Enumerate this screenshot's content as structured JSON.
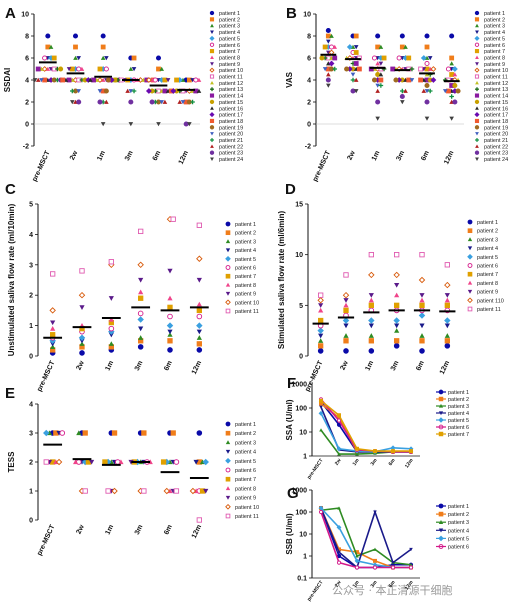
{
  "colors": [
    "#0a0aa8",
    "#f07d1a",
    "#2e8b22",
    "#1a1a8a",
    "#3aa0e0",
    "#d4198a",
    "#e0a000",
    "#f0448a",
    "#5a1a8a",
    "#d85a0a",
    "#e05ab0",
    "#c0c020",
    "#1a6a1a",
    "#8a1aa0",
    "#c8a000",
    "#2a2a2a",
    "#6a0ab0",
    "#f05a30",
    "#a06a20",
    "#4060c0",
    "#109040",
    "#b02020",
    "#7030a0",
    "#404040"
  ],
  "legend_labels": {
    "p1": "patient 1",
    "p2": "patient 2",
    "p3": "patient 3",
    "p4": "patient 4",
    "p5": "patient 5",
    "p6": "patient 6",
    "p7": "patient 7",
    "p8": "patient 8",
    "p9": "patient 9",
    "p10": "patient 10",
    "p11": "patient 11",
    "p12": "patient 12",
    "p13": "patient 13",
    "p14": "patient 14",
    "p15": "patient 15",
    "p16": "patient 16",
    "p17": "patient 17",
    "p18": "patient 18",
    "p19": "patient 19",
    "p20": "patient 20",
    "p21": "patient 21",
    "p22": "patient 22",
    "p23": "patient 23",
    "p24": "patient 24",
    "p10b": "patient 110"
  },
  "watermark": "公众号 · 本正清源干细胞",
  "chart_data": [
    {
      "panel": "A",
      "type": "scatter",
      "ylabel": "SSDAI",
      "ylim": [
        -2,
        10
      ],
      "yticks": [
        -2,
        0,
        2,
        4,
        6,
        8,
        10
      ],
      "categories": [
        "pre-MSCT",
        "2w",
        "1m",
        "3m",
        "6m",
        "12m"
      ],
      "means": [
        5.6,
        4.6,
        4.3,
        4.0,
        3.5,
        3.1
      ],
      "points": [
        [
          8,
          7,
          7,
          6,
          6,
          6,
          6,
          5,
          5,
          5,
          5,
          5,
          5,
          5,
          5,
          4,
          4,
          4,
          4,
          4,
          4,
          4,
          4,
          4
        ],
        [
          8,
          7,
          6,
          6,
          5,
          5,
          5,
          5,
          5,
          4,
          4,
          4,
          4,
          4,
          4,
          4,
          4,
          4,
          3,
          3,
          3,
          2,
          2,
          2
        ],
        [
          8,
          7,
          6,
          6,
          5,
          5,
          5,
          4,
          4,
          4,
          4,
          4,
          4,
          4,
          4,
          4,
          4,
          3,
          3,
          3,
          2,
          2,
          2,
          0
        ],
        [
          6,
          6,
          5,
          5,
          4,
          4,
          4,
          4,
          4,
          4,
          4,
          4,
          4,
          4,
          4,
          4,
          4,
          4,
          4,
          3,
          3,
          3,
          2,
          0
        ],
        [
          6,
          5,
          5,
          4,
          4,
          4,
          4,
          4,
          4,
          4,
          3,
          3,
          3,
          3,
          3,
          3,
          3,
          3,
          2,
          2,
          2,
          2,
          2,
          0
        ],
        [
          4,
          4,
          4,
          4,
          4,
          4,
          4,
          4,
          3,
          3,
          3,
          3,
          3,
          3,
          3,
          3,
          3,
          2,
          2,
          2,
          2,
          2,
          0,
          0
        ]
      ],
      "legend": [
        "p1",
        "p2",
        "p3",
        "p4",
        "p5",
        "p6",
        "p7",
        "p8",
        "p9",
        "p10",
        "p11",
        "p12",
        "p13",
        "p14",
        "p15",
        "p16",
        "p17",
        "p18",
        "p19",
        "p20",
        "p21",
        "p22",
        "p23",
        "p24"
      ]
    },
    {
      "panel": "B",
      "type": "scatter",
      "ylabel": "VAS",
      "ylim": [
        -2,
        10
      ],
      "yticks": [
        -2,
        0,
        2,
        4,
        6,
        8,
        10
      ],
      "categories": [
        "pre-MSCT",
        "2w",
        "1m",
        "3m",
        "6m",
        "12m"
      ],
      "means": [
        6.3,
        5.9,
        5.1,
        4.9,
        4.6,
        3.9
      ],
      "points": [
        [
          8.5,
          8,
          8,
          7.5,
          7,
          7,
          7,
          7,
          6.5,
          6.5,
          6,
          6,
          6,
          6,
          6,
          5.5,
          5.5,
          5,
          5,
          5,
          5,
          4.5,
          4,
          3.5
        ],
        [
          8,
          8,
          7,
          7,
          7,
          6.5,
          6.5,
          6,
          6,
          6,
          6,
          6,
          5.5,
          5.5,
          5,
          5,
          5,
          5,
          5,
          4.5,
          4,
          4,
          3,
          3
        ],
        [
          8,
          7,
          7,
          6,
          6,
          6,
          6,
          5.5,
          5.5,
          5,
          5,
          5,
          5,
          5,
          4.5,
          4.5,
          4,
          4,
          4,
          3.5,
          3.5,
          3,
          2,
          0.5
        ],
        [
          8,
          7,
          7,
          6,
          6,
          6,
          6,
          5,
          5,
          5,
          5,
          5,
          5,
          5,
          4,
          4,
          4,
          4,
          4,
          4,
          3,
          3,
          2.5,
          2
        ],
        [
          8,
          7,
          6,
          6,
          6,
          5.5,
          5,
          5,
          5,
          5,
          5,
          4.5,
          4.5,
          4,
          4,
          4,
          4,
          4,
          3.5,
          3,
          3,
          3,
          2,
          0.5
        ],
        [
          8,
          6,
          5.5,
          5,
          5,
          5,
          4.5,
          4.5,
          4,
          4,
          4,
          4,
          4,
          3.5,
          3.5,
          3,
          3,
          3,
          3,
          3,
          2.5,
          2,
          2,
          0.5
        ]
      ],
      "legend": [
        "p1",
        "p2",
        "p3",
        "p4",
        "p5",
        "p6",
        "p7",
        "p8",
        "p9",
        "p10",
        "p11",
        "p12",
        "p13",
        "p14",
        "p15",
        "p16",
        "p17",
        "p18",
        "p19",
        "p20",
        "p21",
        "p22",
        "p23",
        "p24"
      ]
    },
    {
      "panel": "C",
      "type": "scatter",
      "ylabel": "Unstimulated saliva flow rate (ml/10min)",
      "ylim": [
        0,
        5
      ],
      "yticks": [
        0,
        1,
        2,
        3,
        4,
        5
      ],
      "categories": [
        "pre-MSCT",
        "2w",
        "1m",
        "3m",
        "6m",
        "12m"
      ],
      "means": [
        0.6,
        0.95,
        1.25,
        1.6,
        1.5,
        1.6
      ],
      "points": [
        [
          0.1,
          0.2,
          0.3,
          0.4,
          0.5,
          0.6,
          0.7,
          0.9,
          1.1,
          1.5,
          2.7
        ],
        [
          0.1,
          0.3,
          0.4,
          0.5,
          0.6,
          0.8,
          0.9,
          1.0,
          1.6,
          2.0,
          2.8
        ],
        [
          0.2,
          0.3,
          0.4,
          0.7,
          0.8,
          0.9,
          1.1,
          1.2,
          1.9,
          3.0,
          3.1
        ],
        [
          0.3,
          0.5,
          0.6,
          0.9,
          1.2,
          1.4,
          1.9,
          2.1,
          2.5,
          3.0,
          4.1
        ],
        [
          0.2,
          0.5,
          0.7,
          0.8,
          1.0,
          1.3,
          1.6,
          1.9,
          2.8,
          4.5,
          4.5
        ],
        [
          0.2,
          0.4,
          0.6,
          0.8,
          1.0,
          1.3,
          1.5,
          1.7,
          2.5,
          3.2,
          4.3
        ]
      ],
      "legend": [
        "p1",
        "p2",
        "p3",
        "p4",
        "p5",
        "p6",
        "p7",
        "p8",
        "p9",
        "p10",
        "p11"
      ]
    },
    {
      "panel": "D",
      "type": "scatter",
      "ylabel": "Stimulated saliva flow rate (ml/6min)",
      "ylim": [
        0,
        15
      ],
      "yticks": [
        0,
        5,
        10,
        15
      ],
      "categories": [
        "pre-MSCT",
        "2w",
        "1m",
        "3m",
        "6m",
        "12m"
      ],
      "means": [
        3.2,
        3.8,
        4.3,
        4.5,
        4.5,
        4.4
      ],
      "points": [
        [
          0.5,
          1.0,
          1.5,
          2.0,
          2.5,
          3.0,
          3.5,
          4.5,
          5.0,
          5.5,
          6.0
        ],
        [
          0.5,
          1.5,
          2.0,
          3.0,
          3.5,
          4.0,
          4.5,
          5.0,
          5.5,
          6.0,
          8.0
        ],
        [
          0.5,
          1.5,
          2.0,
          3.0,
          3.5,
          4.5,
          5.0,
          5.5,
          6.0,
          8.0,
          10.0
        ],
        [
          1.0,
          1.5,
          2.5,
          3.0,
          3.5,
          4.5,
          5.0,
          6.0,
          7.0,
          8.0,
          10.0
        ],
        [
          0.5,
          1.5,
          2.0,
          3.0,
          4.0,
          4.5,
          5.0,
          5.5,
          6.0,
          7.5,
          10.0
        ],
        [
          1.0,
          1.5,
          2.0,
          3.0,
          3.5,
          4.5,
          5.0,
          5.5,
          6.0,
          7.0,
          9.0
        ]
      ],
      "legend": [
        "p1",
        "p2",
        "p3",
        "p4",
        "p5",
        "p6",
        "p7",
        "p8",
        "p9",
        "p10b",
        "p11"
      ]
    },
    {
      "panel": "E",
      "type": "scatter",
      "ylabel": "TESS",
      "ylim": [
        0,
        4
      ],
      "yticks": [
        0,
        1,
        2,
        3,
        4
      ],
      "categories": [
        "pre-MSCT",
        "2w",
        "1m",
        "3m",
        "6m",
        "12m"
      ],
      "means": [
        2.6,
        2.1,
        1.9,
        2.0,
        1.65,
        1.45
      ],
      "points": [
        [
          3,
          3,
          3,
          3,
          3,
          3,
          2,
          2,
          2,
          2,
          2
        ],
        [
          3,
          3,
          3,
          2,
          2,
          2,
          2,
          2,
          2,
          1,
          1
        ],
        [
          3,
          3,
          2,
          2,
          2,
          2,
          2,
          2,
          1,
          1,
          1
        ],
        [
          3,
          3,
          2,
          2,
          2,
          2,
          2,
          2,
          2,
          1,
          1
        ],
        [
          3,
          3,
          2,
          2,
          2,
          2,
          2,
          1,
          1,
          1,
          1
        ],
        [
          3,
          2,
          2,
          2,
          2,
          1,
          1,
          1,
          1,
          1,
          0
        ]
      ],
      "legend": [
        "p1",
        "p2",
        "p3",
        "p4",
        "p5",
        "p6",
        "p7",
        "p8",
        "p9",
        "p10",
        "p11"
      ]
    },
    {
      "panel": "F",
      "type": "line",
      "ylabel": "SSA (U/ml)",
      "log": true,
      "yticks": [
        1,
        10,
        100,
        1000
      ],
      "categories": [
        "pre-MSCT",
        "2w",
        "1m",
        "3m",
        "6m",
        "12m"
      ],
      "series": [
        {
          "key": "p1",
          "values": [
            180,
            20,
            1.5,
            1.5,
            1.5,
            1.5
          ]
        },
        {
          "key": "p2",
          "values": [
            150,
            40,
            1.5,
            1.5,
            1.5,
            1.5
          ]
        },
        {
          "key": "p3",
          "values": [
            12,
            1.2,
            1.2,
            1.3,
            1.5,
            1.5
          ]
        },
        {
          "key": "p4",
          "values": [
            110,
            1.8,
            1.5,
            1.5,
            1.5,
            1.5
          ]
        },
        {
          "key": "p5",
          "values": [
            60,
            2.0,
            1.6,
            1.5,
            2.2,
            2.0
          ]
        },
        {
          "key": "p6",
          "values": [
            230,
            30,
            1.8,
            1.6,
            1.5,
            1.5
          ]
        },
        {
          "key": "p7",
          "values": [
            200,
            50,
            2.0,
            1.6,
            1.6,
            1.6
          ]
        }
      ],
      "legend": [
        "p1",
        "p2",
        "p3",
        "p4",
        "p5",
        "p6",
        "p7"
      ]
    },
    {
      "panel": "G",
      "type": "line",
      "ylabel": "SSB (U/ml)",
      "log": true,
      "yticks": [
        0.1,
        1,
        10,
        100,
        1000
      ],
      "categories": [
        "pre-MSCT",
        "2w",
        "1m",
        "3m",
        "6m",
        "12m"
      ],
      "series": [
        {
          "key": "p1",
          "values": [
            150,
            1.0,
            0.3,
            0.3,
            0.4,
            0.4
          ]
        },
        {
          "key": "p2",
          "values": [
            150,
            2.0,
            1.5,
            0.6,
            0.3,
            0.3
          ]
        },
        {
          "key": "p3",
          "values": [
            120,
            150,
            1.0,
            2.0,
            0.5,
            0.4
          ]
        },
        {
          "key": "p4",
          "values": [
            150,
            1.5,
            0.3,
            100,
            0.5,
            2.0
          ]
        },
        {
          "key": "p5",
          "values": [
            150,
            20,
            0.6,
            0.4,
            0.3,
            0.3
          ]
        },
        {
          "key": "p6",
          "values": [
            100,
            0.5,
            0.3,
            0.3,
            0.3,
            0.3
          ]
        }
      ],
      "legend": [
        "p1",
        "p2",
        "p3",
        "p4",
        "p5",
        "p6"
      ]
    }
  ]
}
